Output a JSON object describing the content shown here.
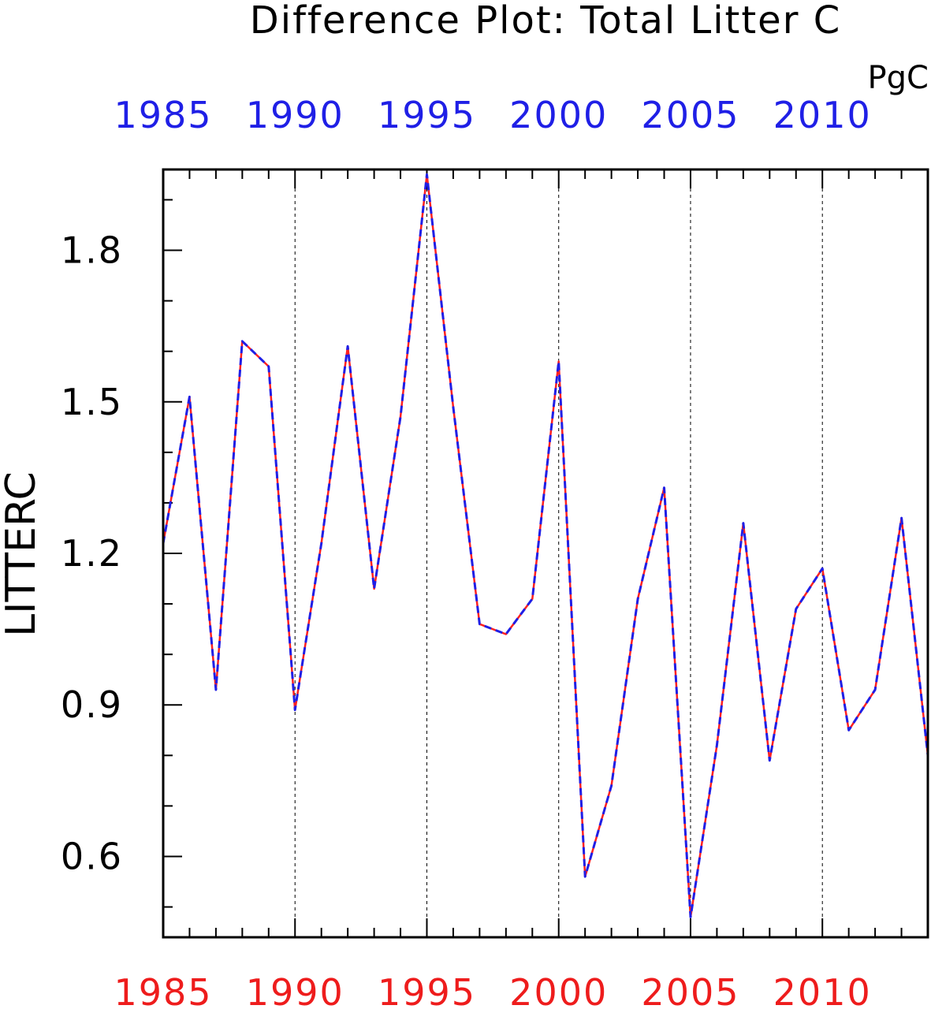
{
  "chart_data": {
    "type": "line",
    "title": "Difference Plot: Total Litter C",
    "units": "PgC",
    "ylabel": "LITTERC",
    "xlim": [
      1985,
      2014
    ],
    "ylim": [
      0.44,
      1.96
    ],
    "yticks": [
      0.6,
      0.9,
      1.2,
      1.5,
      1.8
    ],
    "ytick_labels": [
      "0.6",
      "0.9",
      "1.2",
      "1.5",
      "1.8"
    ],
    "xticks": [
      1985,
      1990,
      1995,
      2000,
      2005,
      2010
    ],
    "xtick_labels": [
      "1985",
      "1990",
      "1995",
      "2000",
      "2005",
      "2010"
    ],
    "grid": "vertical dashed at labeled years",
    "colors": {
      "top_axis_labels": "#1f1fe6",
      "bottom_axis_labels": "#ee1c1c",
      "series_solid": "#ff2020",
      "series_dashed": "#1f1fe6",
      "axes": "#000000",
      "grid": "#000000"
    },
    "x": [
      1985,
      1986,
      1987,
      1988,
      1989,
      1990,
      1991,
      1992,
      1993,
      1994,
      1995,
      1996,
      1997,
      1998,
      1999,
      2000,
      2001,
      2002,
      2003,
      2004,
      2005,
      2006,
      2007,
      2008,
      2009,
      2010,
      2011,
      2012,
      2013,
      2014
    ],
    "series": [
      {
        "values": [
          1.22,
          1.51,
          0.93,
          1.62,
          1.57,
          0.89,
          1.22,
          1.61,
          1.13,
          1.47,
          1.95,
          1.49,
          1.06,
          1.04,
          1.11,
          1.58,
          0.56,
          0.74,
          1.11,
          1.33,
          0.48,
          0.82,
          1.26,
          0.79,
          1.09,
          1.17,
          0.85,
          0.93,
          1.27,
          0.8
        ]
      },
      {
        "values": [
          1.22,
          1.51,
          0.93,
          1.62,
          1.57,
          0.89,
          1.22,
          1.61,
          1.13,
          1.47,
          1.95,
          1.49,
          1.06,
          1.04,
          1.11,
          1.58,
          0.56,
          0.74,
          1.11,
          1.33,
          0.48,
          0.82,
          1.26,
          0.79,
          1.09,
          1.17,
          0.85,
          0.93,
          1.27,
          0.8
        ]
      }
    ]
  }
}
